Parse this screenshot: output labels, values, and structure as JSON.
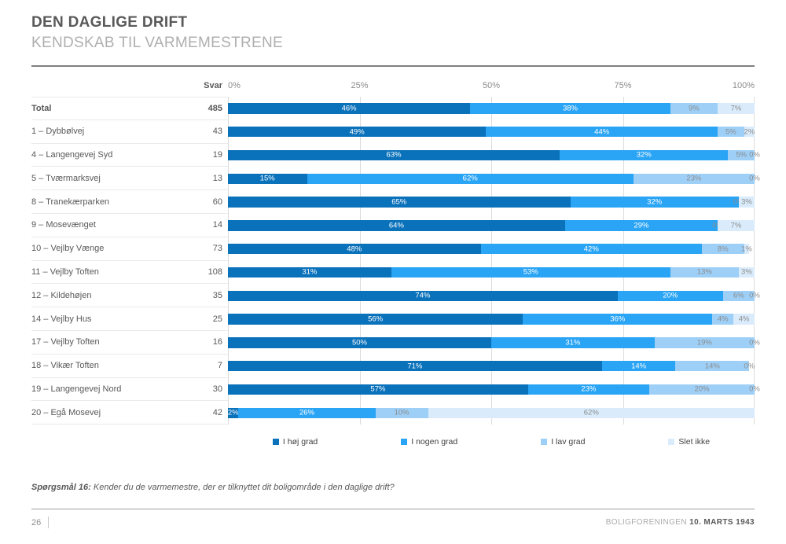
{
  "header": {
    "title": "DEN DAGLIGE DRIFT",
    "subtitle": "KENDSKAB TIL VARMEMESTRENE"
  },
  "table": {
    "svar_header": "Svar"
  },
  "chart_data": {
    "type": "bar",
    "orientation": "horizontal",
    "stacked": true,
    "grid": true,
    "xlim": [
      0,
      100
    ],
    "x_ticks": [
      "0%",
      "25%",
      "50%",
      "75%",
      "100%"
    ],
    "legend_position": "bottom",
    "categories": [
      "Total",
      "1 – Dybbølvej",
      "4 – Langengevej Syd",
      "5 – Tværmarksvej",
      "8 – Tranekærparken",
      "9 – Mosevænget",
      "10 – Vejlby Vænge",
      "11 – Vejlby Toften",
      "12 – Kildehøjen",
      "14 – Vejlby Hus",
      "17 – Vejlby Toften",
      "18 – Vikær Toften",
      "19 – Langengevej Nord",
      "20 – Egå Mosevej"
    ],
    "svar": [
      485,
      43,
      19,
      13,
      60,
      14,
      73,
      108,
      35,
      25,
      16,
      7,
      30,
      42
    ],
    "series": [
      {
        "name": "I høj grad",
        "color": "#0A71BB",
        "label_style": "on-dark",
        "values": [
          46,
          49,
          63,
          15,
          65,
          64,
          48,
          31,
          74,
          56,
          50,
          71,
          57,
          2
        ]
      },
      {
        "name": "I nogen grad",
        "color": "#2AA4F5",
        "label_style": "on-dark",
        "values": [
          38,
          44,
          32,
          62,
          32,
          29,
          42,
          53,
          20,
          36,
          31,
          14,
          23,
          26
        ]
      },
      {
        "name": "I lav grad",
        "color": "#9ECFF7",
        "label_style": "on-light",
        "values": [
          9,
          5,
          5,
          23,
          0,
          0,
          8,
          13,
          6,
          4,
          19,
          14,
          20,
          10
        ]
      },
      {
        "name": "Slet ikke",
        "color": "#DAECFB",
        "label_style": "on-light",
        "values": [
          7,
          2,
          0,
          0,
          3,
          7,
          1,
          3,
          0,
          4,
          0,
          0,
          0,
          62
        ]
      }
    ]
  },
  "question": {
    "prefix": "Spørgsmål 16:",
    "text": " Kender du de varmemestre, der er tilknyttet dit boligområde i den daglige drift?"
  },
  "footer": {
    "page": "26",
    "org": "BOLIGFORENINGEN ",
    "date": "10. MARTS 1943"
  }
}
